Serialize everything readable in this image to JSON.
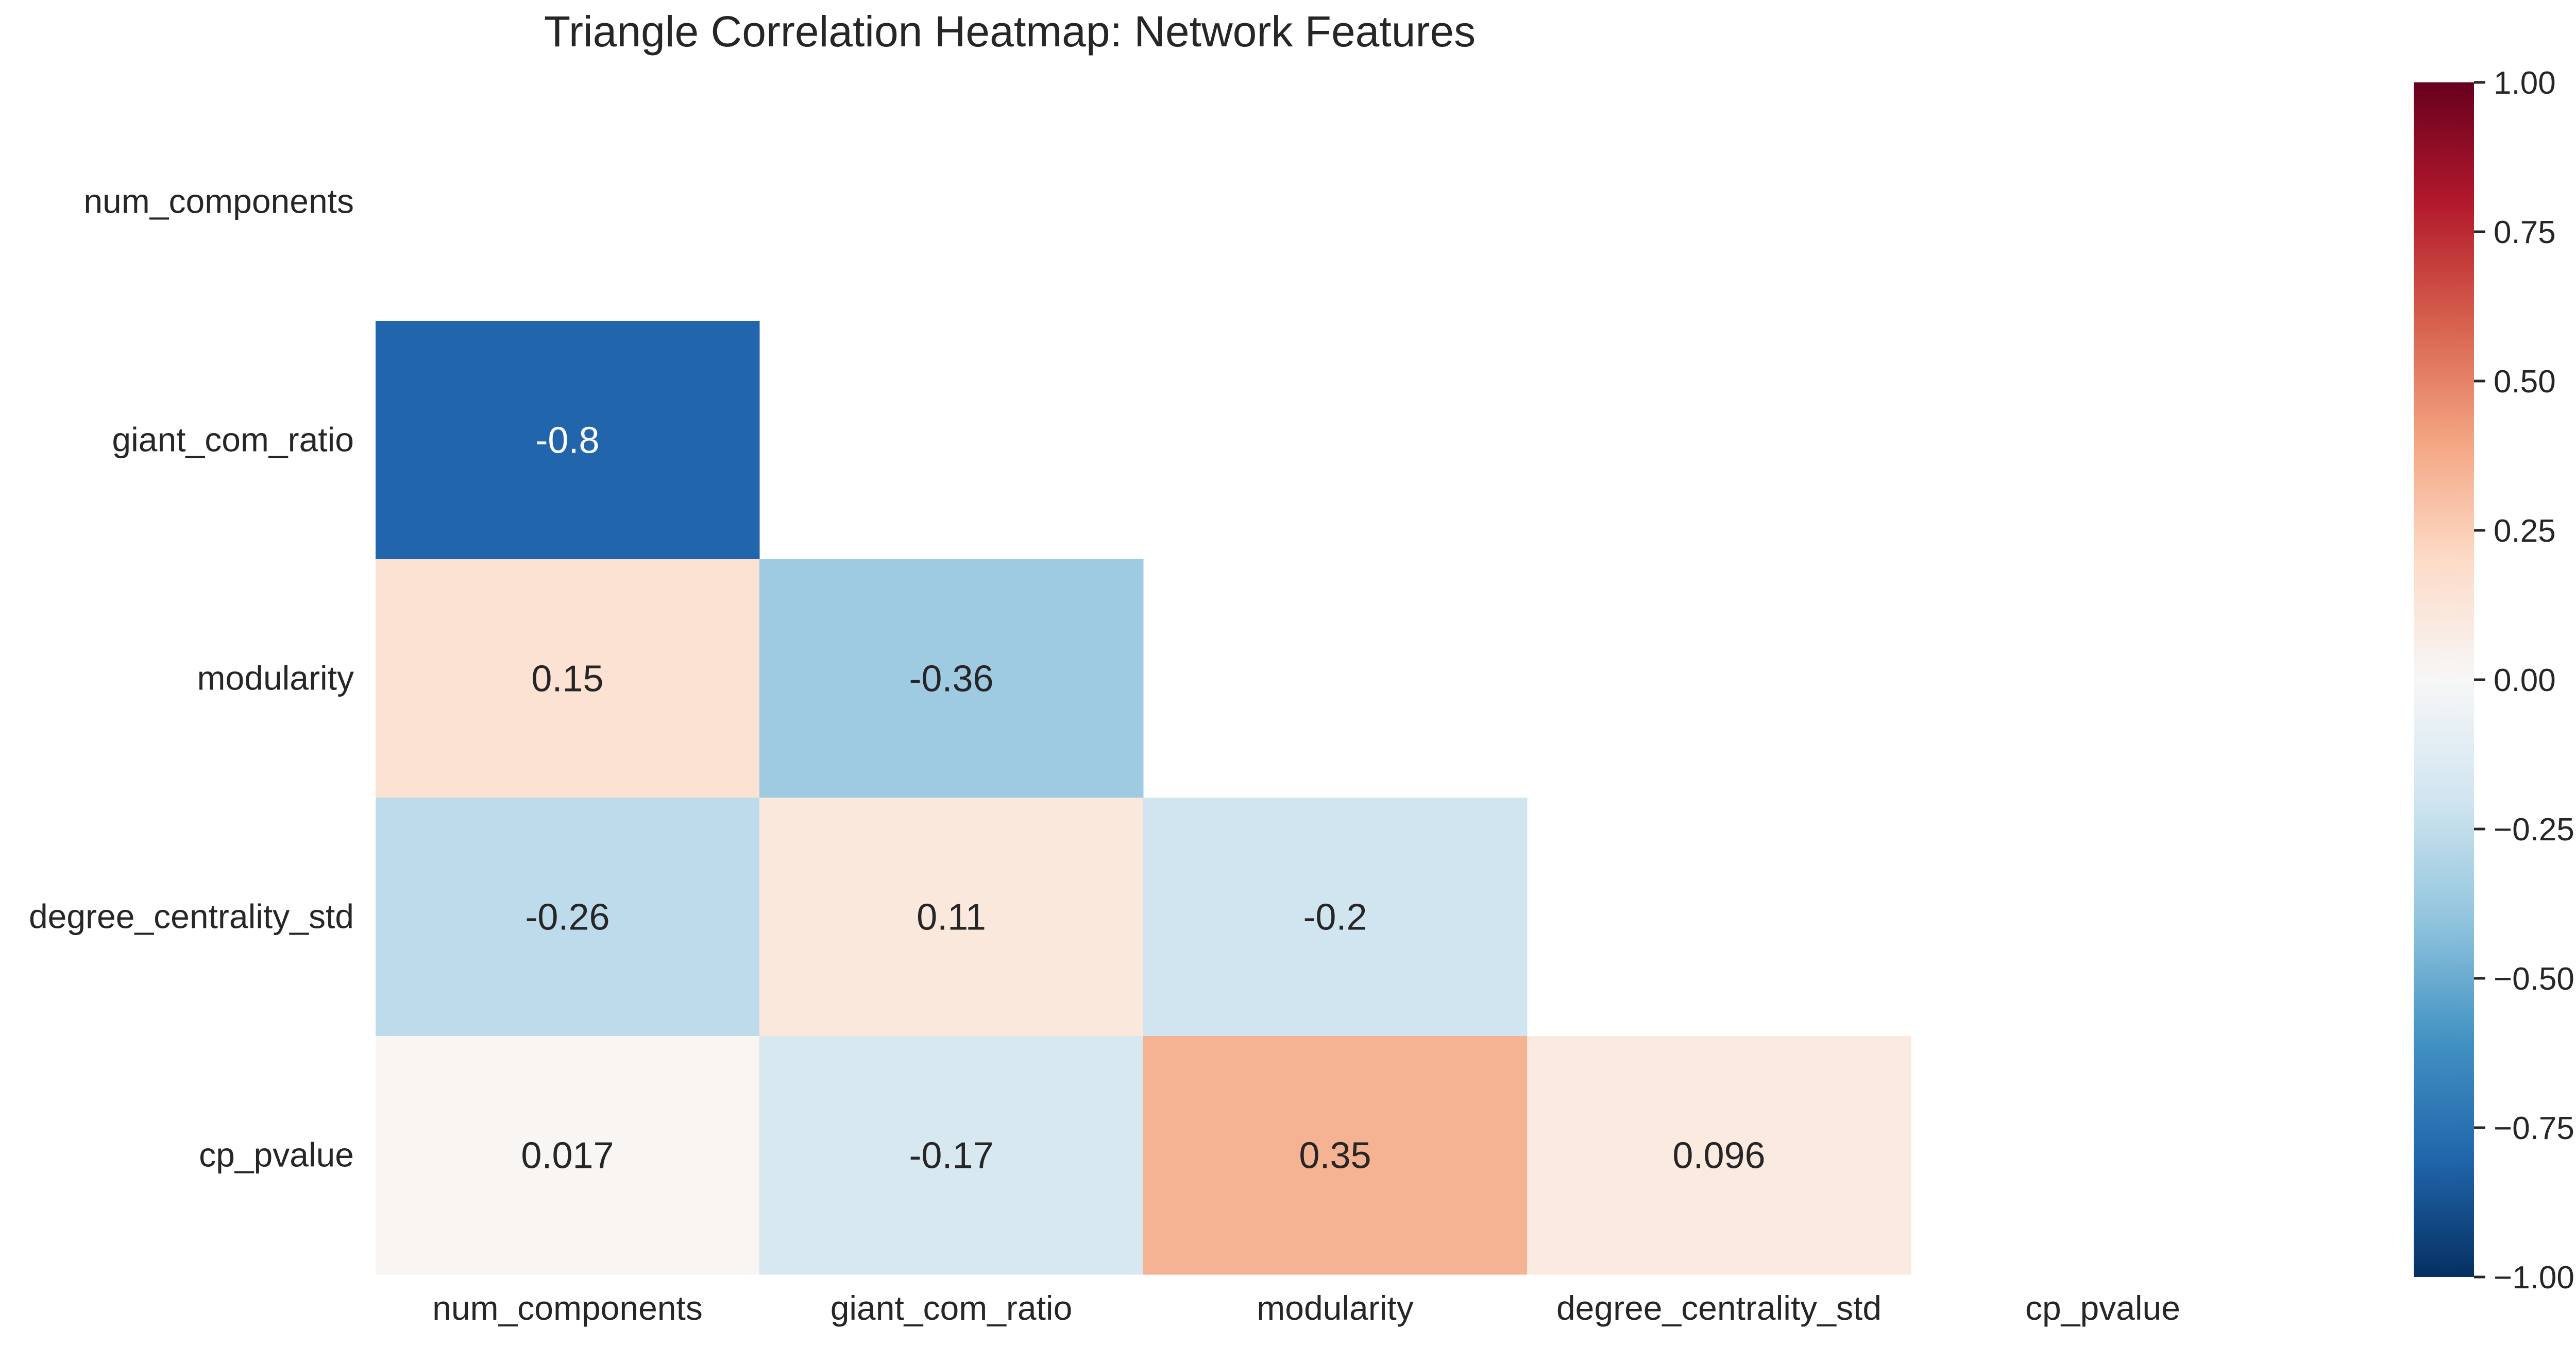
{
  "chart_data": {
    "type": "heatmap",
    "title": "Triangle Correlation Heatmap: Network Features",
    "xlabel": "",
    "ylabel": "",
    "mask": "upper-triangle-including-diagonal",
    "row_labels": [
      "num_components",
      "giant_com_ratio",
      "modularity",
      "degree_centrality_std",
      "cp_pvalue"
    ],
    "col_labels": [
      "num_components",
      "giant_com_ratio",
      "modularity",
      "degree_centrality_std",
      "cp_pvalue"
    ],
    "cells": [
      {
        "row": 1,
        "col": 0,
        "value": -0.8,
        "label": "-0.8"
      },
      {
        "row": 2,
        "col": 0,
        "value": 0.15,
        "label": "0.15"
      },
      {
        "row": 2,
        "col": 1,
        "value": -0.36,
        "label": "-0.36"
      },
      {
        "row": 3,
        "col": 0,
        "value": -0.26,
        "label": "-0.26"
      },
      {
        "row": 3,
        "col": 1,
        "value": 0.11,
        "label": "0.11"
      },
      {
        "row": 3,
        "col": 2,
        "value": -0.2,
        "label": "-0.2"
      },
      {
        "row": 4,
        "col": 0,
        "value": 0.017,
        "label": "0.017"
      },
      {
        "row": 4,
        "col": 1,
        "value": -0.17,
        "label": "-0.17"
      },
      {
        "row": 4,
        "col": 2,
        "value": 0.35,
        "label": "0.35"
      },
      {
        "row": 4,
        "col": 3,
        "value": 0.096,
        "label": "0.096"
      }
    ],
    "colorbar": {
      "range": [
        -1.0,
        1.0
      ],
      "ticks": [
        1.0,
        0.75,
        0.5,
        0.25,
        0.0,
        -0.25,
        -0.5,
        -0.75,
        -1.0
      ],
      "tick_labels": [
        "1.00",
        "0.75",
        "0.50",
        "0.25",
        "0.00",
        "−0.25",
        "−0.50",
        "−0.75",
        "−1.00"
      ],
      "colormap": "RdBu_r",
      "colormap_stops": [
        "#053061",
        "#2166ac",
        "#4393c3",
        "#92c5de",
        "#d1e5f0",
        "#f7f7f7",
        "#fddbc7",
        "#f4a582",
        "#d6604d",
        "#b2182b",
        "#67001f"
      ]
    },
    "grid": false,
    "legend": "colorbar-right"
  }
}
